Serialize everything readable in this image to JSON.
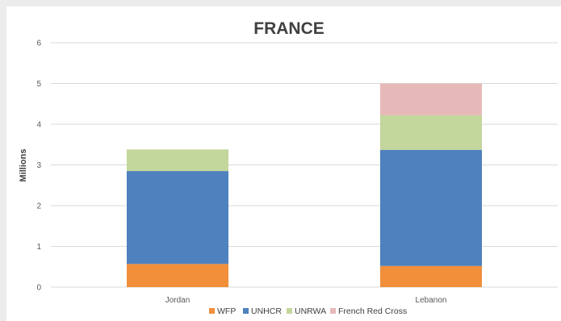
{
  "chart_data": {
    "type": "bar",
    "stacked": true,
    "title": "FRANCE",
    "xlabel": "",
    "ylabel": "Millions",
    "ylim": [
      0,
      6
    ],
    "yticks": [
      "0",
      "1",
      "2",
      "3",
      "4",
      "5",
      "6"
    ],
    "categories": [
      "Jordan",
      "Lebanon"
    ],
    "series": [
      {
        "name": "WFP",
        "color": "#f18f3b",
        "values": [
          0.57,
          0.52
        ]
      },
      {
        "name": "UNHCR",
        "color": "#4e81bd",
        "values": [
          2.28,
          2.85
        ]
      },
      {
        "name": "UNRWA",
        "color": "#c3d69b",
        "values": [
          0.53,
          0.85
        ]
      },
      {
        "name": "French Red Cross",
        "color": "#e6b9b8",
        "values": [
          0.0,
          0.78
        ]
      }
    ],
    "grid": true,
    "legend_position": "bottom"
  }
}
